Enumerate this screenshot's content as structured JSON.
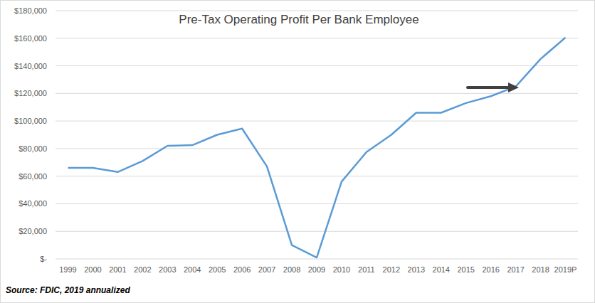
{
  "chart_data": {
    "type": "line",
    "title": "Pre-Tax Operating Profit Per Bank Employee",
    "categories": [
      "1999",
      "2000",
      "2001",
      "2002",
      "2003",
      "2004",
      "2005",
      "2006",
      "2007",
      "2008",
      "2009",
      "2010",
      "2011",
      "2012",
      "2013",
      "2014",
      "2015",
      "2016",
      "2017",
      "2018",
      "2019P"
    ],
    "values": [
      66000,
      66000,
      63000,
      71000,
      82000,
      82500,
      90000,
      94500,
      67000,
      10000,
      1000,
      56000,
      77500,
      90000,
      106000,
      106000,
      113000,
      118000,
      125000,
      145000,
      160500
    ],
    "color": "#5b9bd5",
    "ylim": [
      0,
      180000
    ],
    "yticks": [
      {
        "value": 0,
        "label": "$-"
      },
      {
        "value": 20000,
        "label": "$20,000"
      },
      {
        "value": 40000,
        "label": "$40,000"
      },
      {
        "value": 60000,
        "label": "$60,000"
      },
      {
        "value": 80000,
        "label": "$80,000"
      },
      {
        "value": 100000,
        "label": "$100,000"
      },
      {
        "value": 120000,
        "label": "$120,000"
      },
      {
        "value": 140000,
        "label": "$140,000"
      },
      {
        "value": 160000,
        "label": "$160,000"
      },
      {
        "value": 180000,
        "label": "$180,000"
      }
    ],
    "grid": true,
    "annotations": [
      "Source: FDIC, 2019 annualized"
    ]
  }
}
